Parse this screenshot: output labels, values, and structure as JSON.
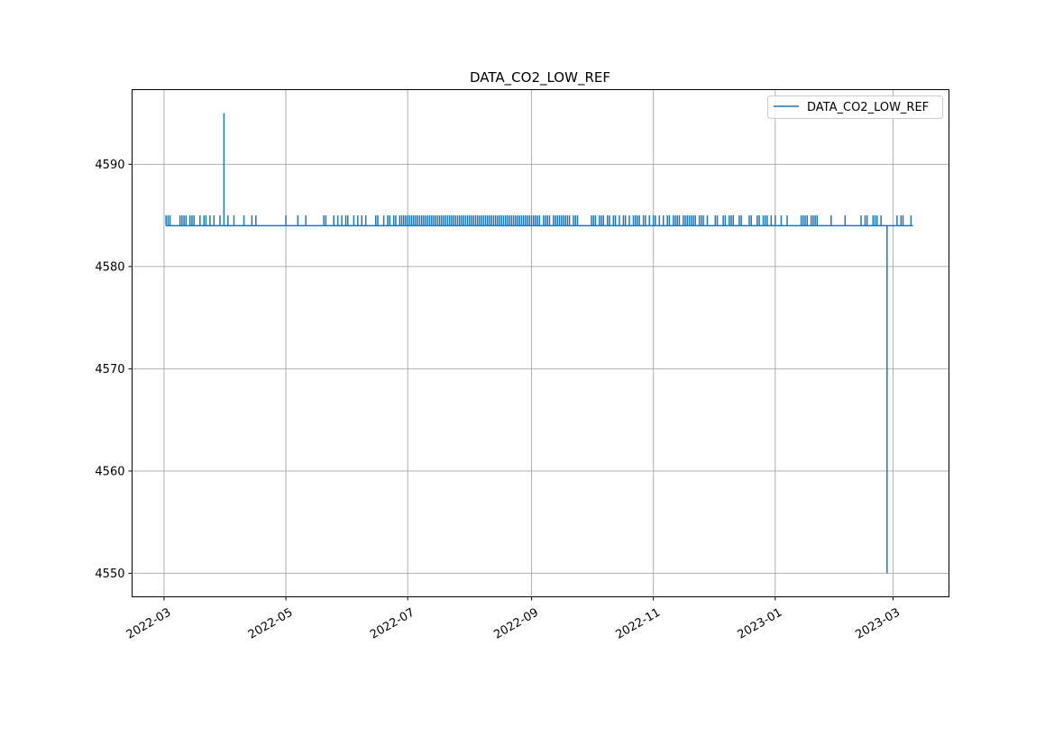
{
  "chart_data": {
    "type": "line",
    "title": "DATA_CO2_LOW_REF",
    "xlabel": "",
    "ylabel": "",
    "x_ticks": [
      "2022-03-01",
      "2022-05-01",
      "2022-07-01",
      "2022-09-01",
      "2022-11-01",
      "2023-01-01",
      "2023-03-01"
    ],
    "x_tick_labels": [
      "2022-03",
      "2022-05",
      "2022-07",
      "2022-09",
      "2022-11",
      "2023-01",
      "2023-03"
    ],
    "y_ticks": [
      4550,
      4560,
      4570,
      4580,
      4590
    ],
    "y_tick_labels": [
      "4550",
      "4560",
      "4570",
      "4580",
      "4590"
    ],
    "xlim": [
      "2022-02-13",
      "2023-03-29"
    ],
    "ylim": [
      4547.7,
      4597.3
    ],
    "grid": true,
    "legend": {
      "position": "top-right",
      "entries": [
        "DATA_CO2_LOW_REF"
      ]
    },
    "colors": {
      "series": "#1f77b4",
      "grid": "#b0b0b0"
    },
    "series": [
      {
        "name": "DATA_CO2_LOW_REF",
        "baseline": 4584,
        "upper_level": 4585,
        "x_start": "2022-03-02",
        "x_end": "2023-03-11",
        "points": [
          {
            "x": "2022-03-31",
            "y": 4595
          },
          {
            "x": "2023-02-26",
            "y": 4550
          }
        ],
        "pulses_at_4585": [
          "2022-03-02",
          "2022-03-03",
          "2022-03-04",
          "2022-03-09",
          "2022-03-10",
          "2022-03-11",
          "2022-03-12",
          "2022-03-14",
          "2022-03-15",
          "2022-03-16",
          "2022-03-19",
          "2022-03-21",
          "2022-03-22",
          "2022-03-24",
          "2022-03-26",
          "2022-03-29",
          "2022-04-02",
          "2022-04-05",
          "2022-04-10",
          "2022-04-14",
          "2022-04-16",
          "2022-05-01",
          "2022-05-07",
          "2022-05-11",
          "2022-05-20",
          "2022-05-21",
          "2022-05-25",
          "2022-05-27",
          "2022-05-29",
          "2022-05-31",
          "2022-06-01",
          "2022-06-04",
          "2022-06-06",
          "2022-06-08",
          "2022-06-10",
          "2022-06-15",
          "2022-06-16",
          "2022-06-19",
          "2022-06-21",
          "2022-06-22",
          "2022-06-24",
          "2022-06-25",
          "2022-06-27",
          "2022-06-28",
          "2022-06-29",
          "2022-06-30",
          "2022-07-01",
          "2022-07-02",
          "2022-07-03",
          "2022-07-04",
          "2022-07-05",
          "2022-07-06",
          "2022-07-07",
          "2022-07-08",
          "2022-07-09",
          "2022-07-10",
          "2022-07-11",
          "2022-07-12",
          "2022-07-13",
          "2022-07-14",
          "2022-07-15",
          "2022-07-16",
          "2022-07-17",
          "2022-07-18",
          "2022-07-19",
          "2022-07-20",
          "2022-07-21",
          "2022-07-22",
          "2022-07-23",
          "2022-07-24",
          "2022-07-25",
          "2022-07-26",
          "2022-07-27",
          "2022-07-28",
          "2022-07-29",
          "2022-07-30",
          "2022-07-31",
          "2022-08-01",
          "2022-08-02",
          "2022-08-03",
          "2022-08-04",
          "2022-08-05",
          "2022-08-06",
          "2022-08-07",
          "2022-08-08",
          "2022-08-09",
          "2022-08-10",
          "2022-08-11",
          "2022-08-12",
          "2022-08-13",
          "2022-08-14",
          "2022-08-15",
          "2022-08-16",
          "2022-08-17",
          "2022-08-18",
          "2022-08-19",
          "2022-08-20",
          "2022-08-21",
          "2022-08-22",
          "2022-08-23",
          "2022-08-24",
          "2022-08-25",
          "2022-08-26",
          "2022-08-27",
          "2022-08-28",
          "2022-08-29",
          "2022-08-30",
          "2022-08-31",
          "2022-09-01",
          "2022-09-02",
          "2022-09-03",
          "2022-09-04",
          "2022-09-05",
          "2022-09-07",
          "2022-09-08",
          "2022-09-09",
          "2022-09-10",
          "2022-09-12",
          "2022-09-13",
          "2022-09-14",
          "2022-09-15",
          "2022-09-16",
          "2022-09-17",
          "2022-09-18",
          "2022-09-19",
          "2022-09-20",
          "2022-09-22",
          "2022-09-23",
          "2022-09-24",
          "2022-10-01",
          "2022-10-02",
          "2022-10-03",
          "2022-10-05",
          "2022-10-06",
          "2022-10-07",
          "2022-10-09",
          "2022-10-10",
          "2022-10-12",
          "2022-10-13",
          "2022-10-15",
          "2022-10-17",
          "2022-10-18",
          "2022-10-20",
          "2022-10-22",
          "2022-10-23",
          "2022-10-24",
          "2022-10-25",
          "2022-10-27",
          "2022-10-28",
          "2022-10-30",
          "2022-11-01",
          "2022-11-02",
          "2022-11-04",
          "2022-11-06",
          "2022-11-08",
          "2022-11-09",
          "2022-11-11",
          "2022-11-12",
          "2022-11-13",
          "2022-11-14",
          "2022-11-16",
          "2022-11-17",
          "2022-11-18",
          "2022-11-19",
          "2022-11-20",
          "2022-11-21",
          "2022-11-22",
          "2022-11-24",
          "2022-11-25",
          "2022-11-26",
          "2022-11-28",
          "2022-12-02",
          "2022-12-03",
          "2022-12-06",
          "2022-12-07",
          "2022-12-09",
          "2022-12-10",
          "2022-12-11",
          "2022-12-14",
          "2022-12-15",
          "2022-12-19",
          "2022-12-20",
          "2022-12-23",
          "2022-12-24",
          "2022-12-26",
          "2022-12-27",
          "2022-12-28",
          "2022-12-30",
          "2023-01-01",
          "2023-01-04",
          "2023-01-07",
          "2023-01-14",
          "2023-01-15",
          "2023-01-16",
          "2023-01-17",
          "2023-01-19",
          "2023-01-20",
          "2023-01-21",
          "2023-01-22",
          "2023-01-29",
          "2023-02-05",
          "2023-02-13",
          "2023-02-15",
          "2023-02-16",
          "2023-02-19",
          "2023-02-20",
          "2023-02-21",
          "2023-02-23",
          "2023-03-03",
          "2023-03-05",
          "2023-03-06",
          "2023-03-10"
        ]
      }
    ]
  }
}
